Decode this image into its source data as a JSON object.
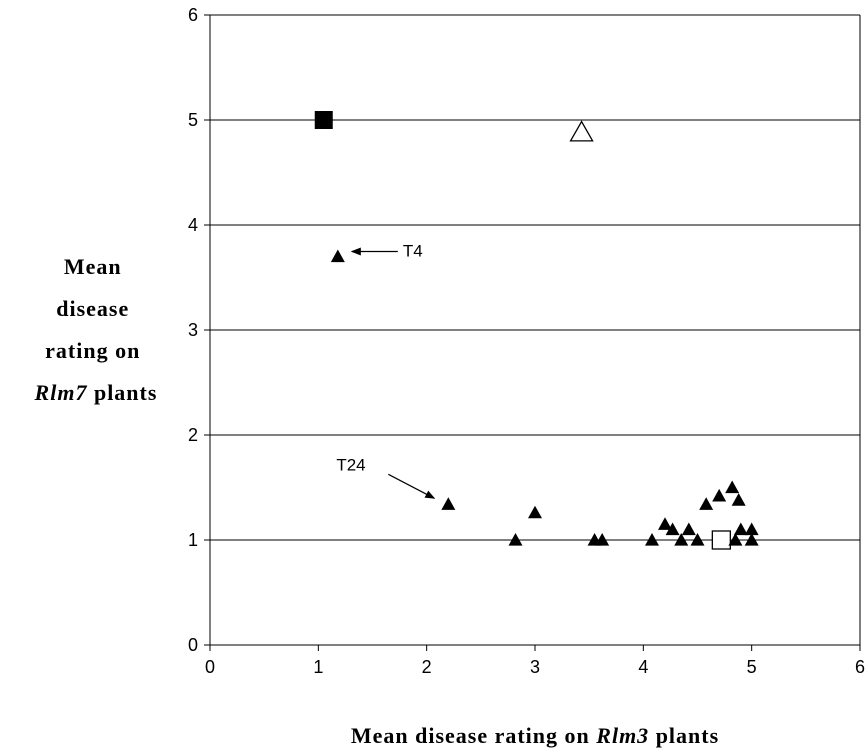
{
  "chart_data": {
    "type": "scatter",
    "title": "",
    "xlabel": {
      "pre": "Mean disease rating on ",
      "italic": "Rlm3",
      "post": "  plants"
    },
    "ylabel": {
      "line1": "Mean",
      "line2": "disease",
      "line3": "rating on",
      "line4_italic": "Rlm7",
      "line4_post": "  plants"
    },
    "xlim": [
      0,
      6
    ],
    "ylim": [
      0,
      6
    ],
    "xticks": [
      "0",
      "1",
      "2",
      "3",
      "4",
      "5",
      "6"
    ],
    "yticks": [
      "0",
      "1",
      "2",
      "3",
      "4",
      "5",
      "6"
    ],
    "grid": "horizontal",
    "series": [
      {
        "marker": "filled-square",
        "points": [
          {
            "x": 1.05,
            "y": 5.0
          }
        ]
      },
      {
        "marker": "open-triangle",
        "points": [
          {
            "x": 3.43,
            "y": 4.88
          }
        ]
      },
      {
        "marker": "open-square",
        "points": [
          {
            "x": 4.72,
            "y": 1.0
          }
        ]
      },
      {
        "marker": "filled-triangle",
        "points": [
          {
            "x": 1.18,
            "y": 3.7
          },
          {
            "x": 2.2,
            "y": 1.34
          },
          {
            "x": 2.82,
            "y": 1.0
          },
          {
            "x": 3.0,
            "y": 1.26
          },
          {
            "x": 3.55,
            "y": 1.0
          },
          {
            "x": 3.62,
            "y": 1.0
          },
          {
            "x": 4.08,
            "y": 1.0
          },
          {
            "x": 4.2,
            "y": 1.15
          },
          {
            "x": 4.27,
            "y": 1.1
          },
          {
            "x": 4.35,
            "y": 1.0
          },
          {
            "x": 4.42,
            "y": 1.1
          },
          {
            "x": 4.5,
            "y": 1.0
          },
          {
            "x": 4.58,
            "y": 1.34
          },
          {
            "x": 4.7,
            "y": 1.42
          },
          {
            "x": 4.82,
            "y": 1.5
          },
          {
            "x": 4.88,
            "y": 1.38
          },
          {
            "x": 4.85,
            "y": 1.0
          },
          {
            "x": 4.9,
            "y": 1.1
          },
          {
            "x": 5.0,
            "y": 1.1
          },
          {
            "x": 5.0,
            "y": 1.0
          }
        ]
      }
    ],
    "annotations": [
      {
        "text": "T4",
        "point": {
          "x": 1.18,
          "y": 3.7
        }
      },
      {
        "text": "T24",
        "point": {
          "x": 2.2,
          "y": 1.34
        }
      }
    ]
  }
}
